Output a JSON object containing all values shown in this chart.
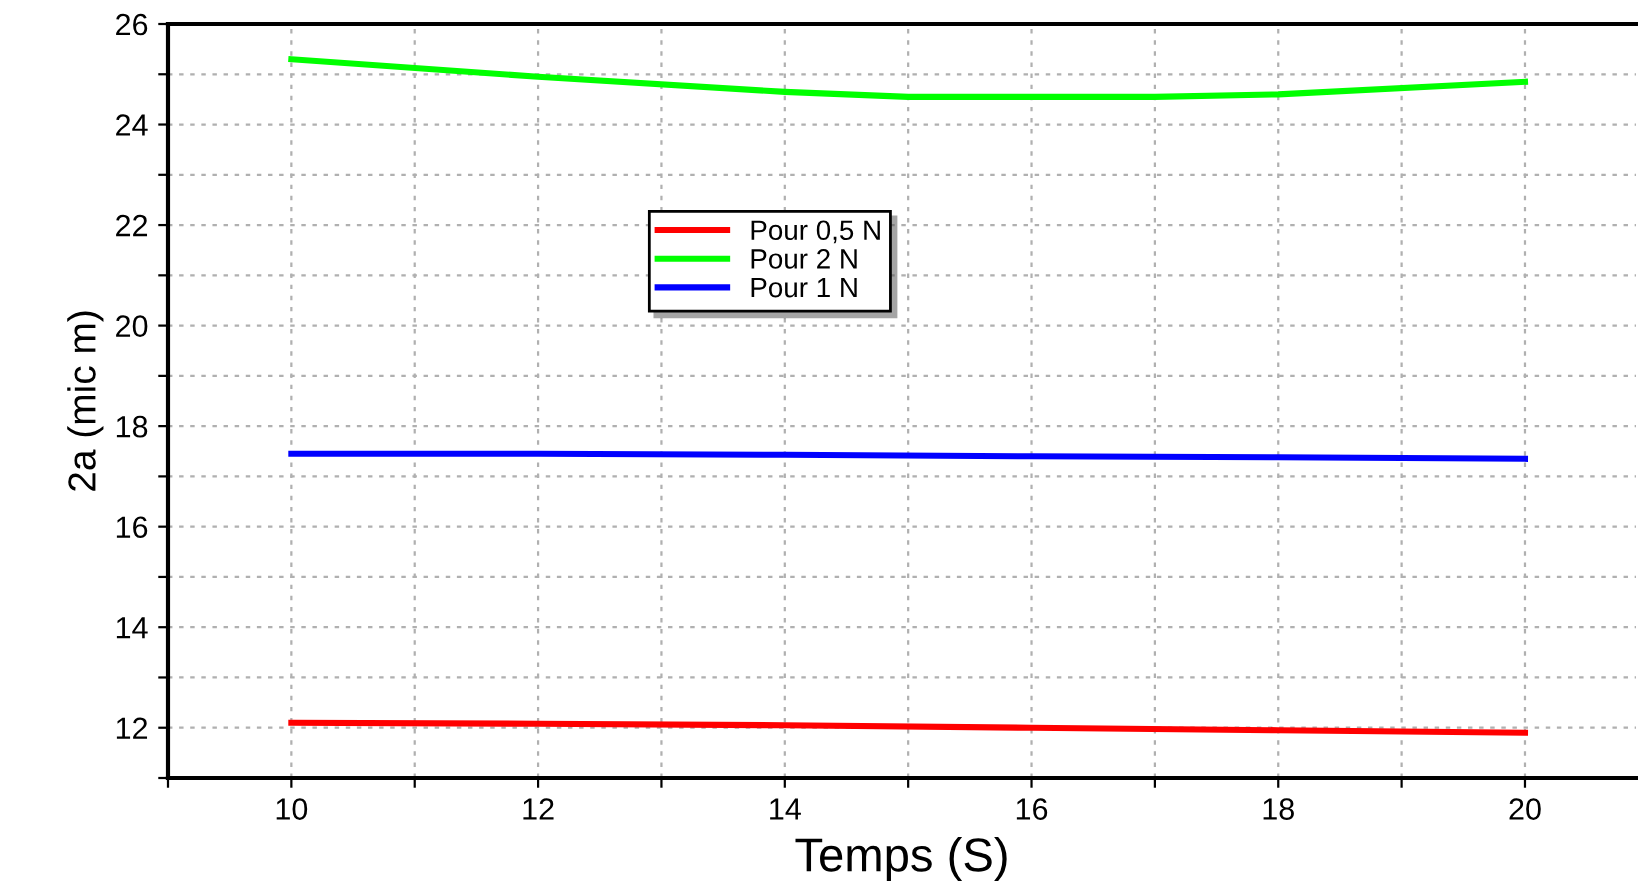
{
  "chart_data": {
    "type": "line",
    "xlabel": "Temps (S)",
    "ylabel": "2a (mic m)",
    "xlim": [
      9,
      20.9
    ],
    "ylim": [
      11,
      26
    ],
    "xticks": [
      {
        "value": 9,
        "label": null
      },
      10,
      {
        "value": 11,
        "label": null
      },
      12,
      {
        "value": 13,
        "label": null
      },
      14,
      {
        "value": 15,
        "label": null
      },
      16,
      {
        "value": 17,
        "label": null
      },
      18,
      {
        "value": 19,
        "label": null
      },
      20
    ],
    "yticks": [
      {
        "value": 11,
        "label": null
      },
      12,
      {
        "value": 13,
        "label": null
      },
      14,
      {
        "value": 15,
        "label": null
      },
      16,
      {
        "value": 17,
        "label": null
      },
      18,
      {
        "value": 19,
        "label": null
      },
      20,
      {
        "value": 21,
        "label": null
      },
      22,
      {
        "value": 23,
        "label": null
      },
      24,
      {
        "value": 25,
        "label": null
      },
      26
    ],
    "grid": true,
    "legend": "top",
    "marker": "none",
    "line_style": "solid",
    "series": [
      {
        "name": "Pour 0,5 N",
        "color": "#ff0000",
        "x": [
          10,
          12,
          14,
          16,
          18,
          20
        ],
        "values": [
          12.1,
          12.08,
          12.05,
          12.0,
          11.95,
          11.9
        ]
      },
      {
        "name": "Pour 2 N",
        "color": "#00ff00",
        "x": [
          10,
          12,
          14,
          15,
          16,
          17,
          18,
          20
        ],
        "values": [
          25.3,
          24.95,
          24.65,
          24.55,
          24.55,
          24.55,
          24.6,
          24.85
        ]
      },
      {
        "name": "Pour 1 N",
        "color": "#0000ff",
        "x": [
          10,
          12,
          14,
          16,
          18,
          20
        ],
        "values": [
          17.45,
          17.45,
          17.43,
          17.4,
          17.38,
          17.35
        ]
      }
    ]
  }
}
